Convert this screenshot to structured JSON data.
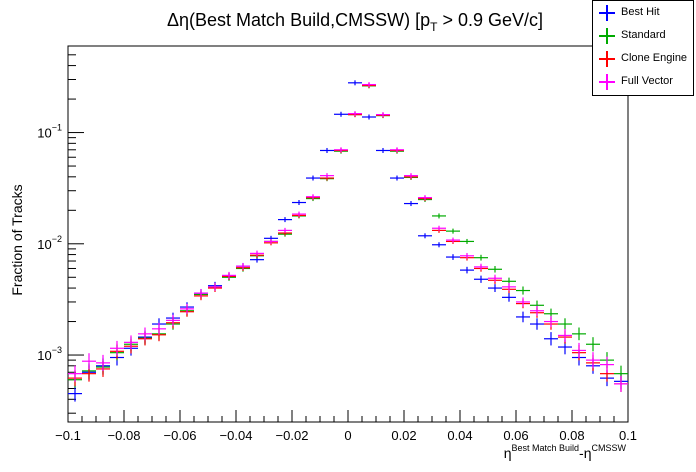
{
  "chart_data": {
    "type": "scatter",
    "title": "Δη(Best Match Build,CMSSW) [p_T > 0.9 GeV/c]",
    "title_parts": {
      "main": "Δη(Best Match Build,CMSSW) [p",
      "sub": "T",
      "rest": " > 0.9 GeV/c]"
    },
    "xlabel_parts": {
      "base1": "η",
      "sup1": "Best Match Build",
      "mid": "-η",
      "sup2": "CMSSW"
    },
    "ylabel": "Fraction of Tracks",
    "xlim": [
      -0.1,
      0.1
    ],
    "ylim": [
      0.00025,
      0.6
    ],
    "yscale": "log",
    "x_ticks": [
      "−0.1",
      "−0.08",
      "−0.06",
      "−0.04",
      "−0.02",
      "0",
      "0.02",
      "0.04",
      "0.06",
      "0.08",
      "0.1"
    ],
    "x_tick_values": [
      -0.1,
      -0.08,
      -0.06,
      -0.04,
      -0.02,
      0,
      0.02,
      0.04,
      0.06,
      0.08,
      0.1
    ],
    "y_ticks": [
      {
        "value": 0.001,
        "base": "10",
        "exp": "−3"
      },
      {
        "value": 0.01,
        "base": "10",
        "exp": "−2"
      },
      {
        "value": 0.1,
        "base": "10",
        "exp": "−1"
      }
    ],
    "bin_width": 0.005,
    "x": [
      -0.0975,
      -0.0925,
      -0.0875,
      -0.0825,
      -0.0775,
      -0.0725,
      -0.0675,
      -0.0625,
      -0.0575,
      -0.0525,
      -0.0475,
      -0.0425,
      -0.0375,
      -0.0325,
      -0.0275,
      -0.0225,
      -0.0175,
      -0.0125,
      -0.0075,
      -0.0025,
      0.0025,
      0.0075,
      0.0125,
      0.0175,
      0.0225,
      0.0275,
      0.0325,
      0.0375,
      0.0425,
      0.0475,
      0.0525,
      0.0575,
      0.0625,
      0.0675,
      0.0725,
      0.0775,
      0.0825,
      0.0875,
      0.0925,
      0.0975
    ],
    "series": [
      {
        "name": "Best Hit",
        "color": "#0000ff",
        "values": [
          0.00045,
          0.0007,
          0.0008,
          0.00095,
          0.00115,
          0.00145,
          0.0019,
          0.00215,
          0.0027,
          0.0036,
          0.0042,
          0.0051,
          0.0063,
          0.0072,
          0.0112,
          0.0165,
          0.0235,
          0.039,
          0.069,
          0.146,
          0.28,
          0.138,
          0.069,
          0.039,
          0.023,
          0.0118,
          0.0098,
          0.0076,
          0.0058,
          0.0048,
          0.004,
          0.0033,
          0.0022,
          0.0019,
          0.0014,
          0.00118,
          0.00095,
          0.0008,
          0.00062,
          0.00058
        ]
      },
      {
        "name": "Standard",
        "color": "#00aa00",
        "values": [
          0.0006,
          0.00072,
          0.00078,
          0.00105,
          0.00125,
          0.00142,
          0.00155,
          0.0019,
          0.0025,
          0.0035,
          0.0041,
          0.005,
          0.006,
          0.0078,
          0.0105,
          0.0122,
          0.0178,
          0.0255,
          0.0385,
          0.068,
          0.145,
          0.263,
          0.142,
          0.068,
          0.0395,
          0.025,
          0.0178,
          0.013,
          0.0105,
          0.0075,
          0.0059,
          0.0046,
          0.0038,
          0.0028,
          0.00235,
          0.0019,
          0.00155,
          0.00125,
          0.0009,
          0.00068
        ]
      },
      {
        "name": "Clone Engine",
        "color": "#ff0000",
        "values": [
          0.00062,
          0.00068,
          0.00075,
          0.00108,
          0.0012,
          0.0014,
          0.00152,
          0.00195,
          0.00245,
          0.0034,
          0.004,
          0.0051,
          0.0061,
          0.0079,
          0.0102,
          0.0125,
          0.018,
          0.026,
          0.039,
          0.069,
          0.145,
          0.265,
          0.143,
          0.069,
          0.04,
          0.0255,
          0.0132,
          0.0105,
          0.0075,
          0.006,
          0.0047,
          0.0039,
          0.0029,
          0.0024,
          0.0019,
          0.00145,
          0.00105,
          0.00085,
          0.00068,
          0.00055
        ]
      },
      {
        "name": "Full Vector",
        "color": "#ff00ff",
        "values": [
          0.00068,
          0.00088,
          0.00085,
          0.00115,
          0.0013,
          0.00155,
          0.00172,
          0.00205,
          0.0026,
          0.0036,
          0.0041,
          0.0052,
          0.0063,
          0.0082,
          0.0105,
          0.0132,
          0.0185,
          0.0265,
          0.041,
          0.07,
          0.148,
          0.27,
          0.145,
          0.07,
          0.041,
          0.026,
          0.0138,
          0.0108,
          0.0078,
          0.0062,
          0.0049,
          0.0041,
          0.003,
          0.0025,
          0.002,
          0.0015,
          0.0011,
          0.0009,
          0.00082,
          0.00055
        ]
      }
    ],
    "legend_position": "top-right",
    "grid": false
  }
}
